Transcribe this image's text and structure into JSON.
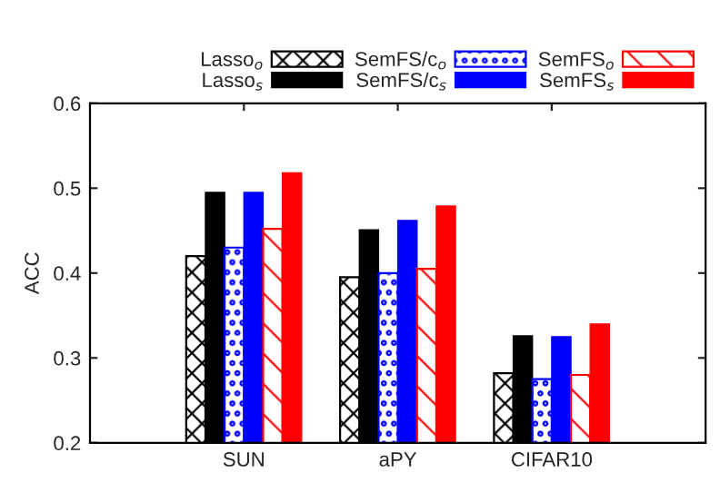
{
  "chart_data": {
    "type": "bar",
    "ylabel": "ACC",
    "categories": [
      "SUN",
      "aPY",
      "CIFAR10"
    ],
    "series": [
      {
        "name": "Lasso$_{o}$",
        "color": "#000000",
        "values": [
          0.42,
          0.395,
          0.282
        ]
      },
      {
        "name": "Lasso$_{s}$",
        "color": "#000000",
        "values": [
          0.495,
          0.451,
          0.326
        ]
      },
      {
        "name": "SemFS/c$_{o}$",
        "color": "#0000ff",
        "values": [
          0.43,
          0.4,
          0.275
        ]
      },
      {
        "name": "SemFS/c$_{s}$",
        "color": "#0000ff",
        "values": [
          0.495,
          0.462,
          0.325
        ]
      },
      {
        "name": "SemFS$_{o}$",
        "color": "#ff0000",
        "values": [
          0.452,
          0.405,
          0.28
        ]
      },
      {
        "name": "SemFS$_{s}$",
        "color": "#ff0000",
        "values": [
          0.518,
          0.479,
          0.34
        ]
      }
    ],
    "ylim": [
      0.2,
      0.6
    ],
    "yticks": [
      0.2,
      0.3,
      0.4,
      0.5,
      0.6
    ],
    "grid": false,
    "legend": "top right"
  }
}
